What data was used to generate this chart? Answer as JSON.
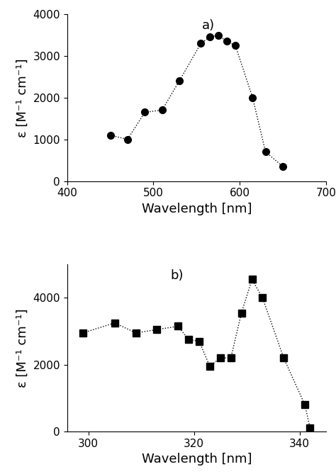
{
  "panel_a": {
    "x": [
      450,
      470,
      490,
      510,
      530,
      555,
      565,
      575,
      585,
      595,
      615,
      630,
      650
    ],
    "y": [
      1100,
      1000,
      1650,
      1700,
      2400,
      3300,
      3450,
      3500,
      3350,
      3250,
      2000,
      700,
      350
    ],
    "xlabel": "Wavelength [nm]",
    "ylabel": "ε [M⁻¹ cm⁻¹]",
    "xlim": [
      400,
      700
    ],
    "ylim": [
      0,
      4000
    ],
    "xticks": [
      400,
      500,
      600,
      700
    ],
    "yticks": [
      0,
      1000,
      2000,
      3000,
      4000
    ],
    "label": "a)"
  },
  "panel_b": {
    "x": [
      299,
      305,
      309,
      313,
      317,
      319,
      321,
      323,
      325,
      327,
      329,
      331,
      333,
      337,
      341
    ],
    "y": [
      2950,
      3250,
      2950,
      3050,
      3150,
      2750,
      2700,
      1950,
      2200,
      2200,
      3550,
      4550,
      4000,
      2200,
      800
    ],
    "extra_x": [
      342
    ],
    "extra_y": [
      100
    ],
    "xlabel": "Wavelength [nm]",
    "ylabel": "ε [M⁻¹ cm⁻¹]",
    "xlim": [
      296,
      345
    ],
    "ylim": [
      0,
      5000
    ],
    "xticks": [
      300,
      320,
      340
    ],
    "yticks": [
      0,
      2000,
      4000
    ],
    "label": "b)"
  },
  "background_color": "#ffffff",
  "line_color": "#000000",
  "marker_color": "#000000",
  "dotted_style": ":",
  "marker_size_circle": 7,
  "marker_size_square": 7,
  "label_fontsize": 13,
  "tick_fontsize": 11,
  "axis_label_fontsize": 13
}
